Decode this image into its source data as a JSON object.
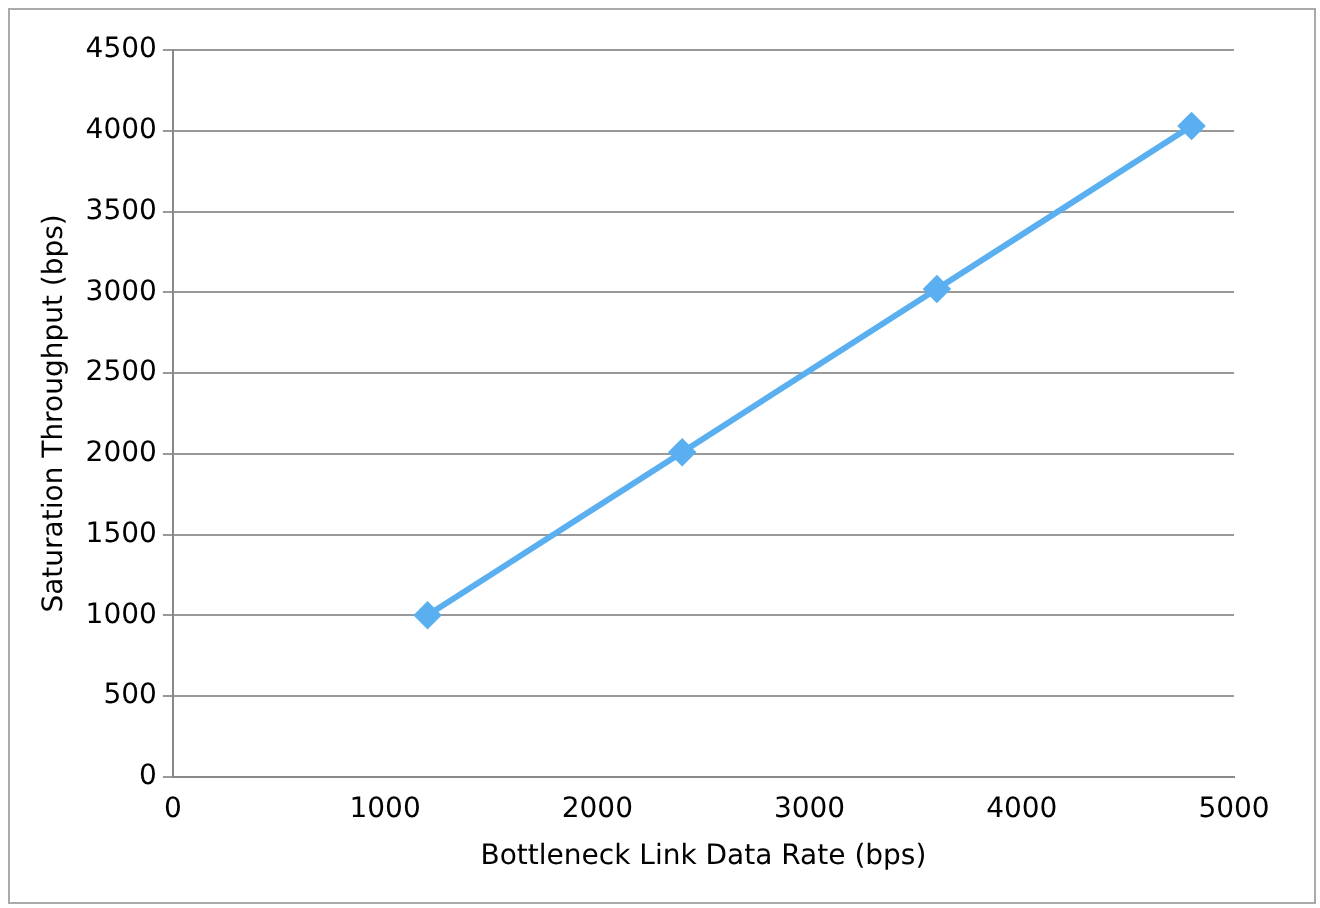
{
  "chart_data": {
    "type": "line",
    "xlabel": "Bottleneck Link Data Rate (bps)",
    "ylabel": "Saturation Throughput (bps)",
    "x": [
      1200,
      2400,
      3600,
      4800
    ],
    "series": [
      {
        "color": "#5aaff0",
        "values": [
          1000,
          2010,
          3020,
          4030
        ]
      }
    ],
    "xlim": [
      0,
      5000
    ],
    "xticks": [
      0,
      1000,
      2000,
      3000,
      4000,
      5000
    ],
    "ylim": [
      0,
      4500
    ],
    "yticks": [
      0,
      500,
      1000,
      1500,
      2000,
      2500,
      3000,
      3500,
      4000,
      4500
    ],
    "grid": "y",
    "legend": false,
    "marker": "diamond",
    "line_style": "solid"
  }
}
